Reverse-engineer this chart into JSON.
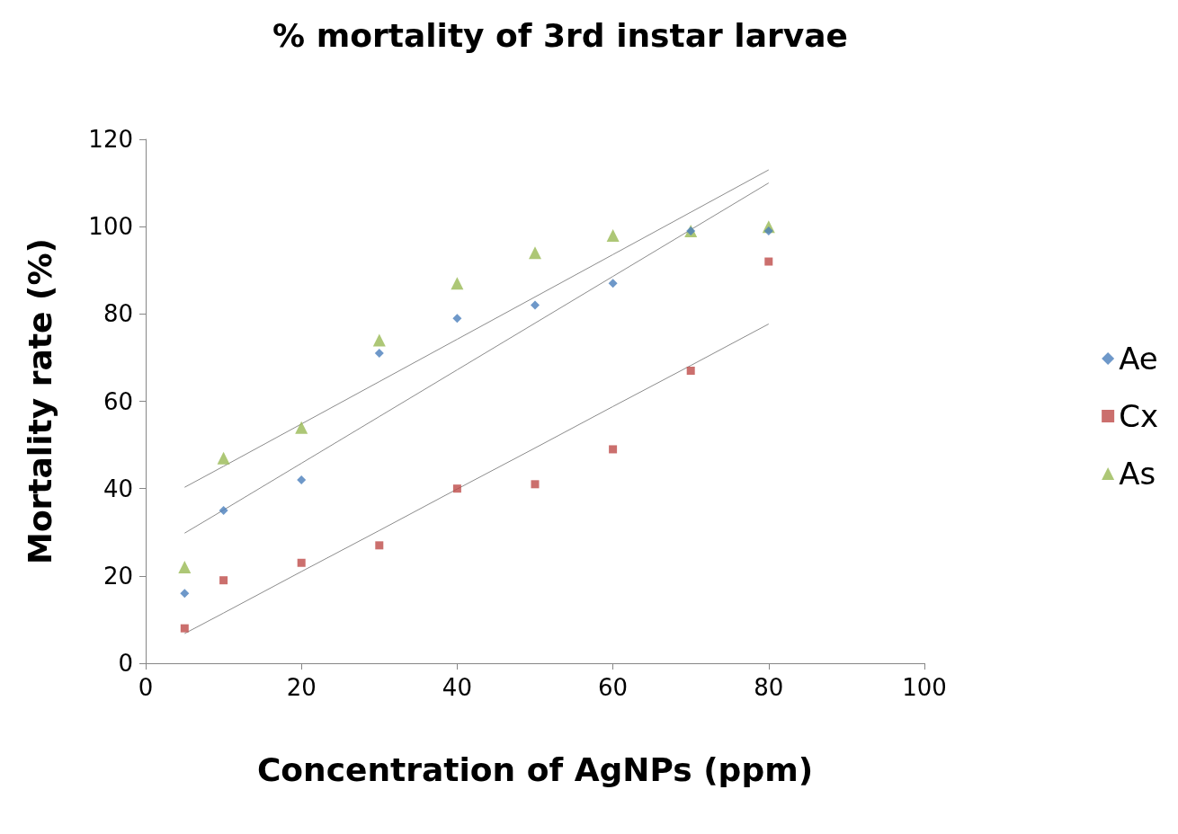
{
  "chart_data": {
    "type": "scatter",
    "title": "% mortality of 3rd instar larvae",
    "xlabel": "Concentration of AgNPs (ppm)",
    "ylabel": "Mortality rate (%)",
    "x": [
      5,
      10,
      20,
      30,
      40,
      50,
      60,
      70,
      80
    ],
    "series": [
      {
        "name": "Ae",
        "color": "#4a7ebb",
        "marker": "diamond",
        "values": [
          16,
          35,
          42,
          71,
          79,
          82,
          87,
          99,
          99
        ]
      },
      {
        "name": "Cx",
        "color": "#be4b48",
        "marker": "square",
        "values": [
          8,
          19,
          23,
          27,
          40,
          41,
          49,
          67,
          92
        ]
      },
      {
        "name": "As",
        "color": "#98b954",
        "marker": "triangle",
        "values": [
          22,
          47,
          54,
          74,
          87,
          94,
          98,
          99,
          100
        ]
      },
      {
        "type": "line",
        "color": "#8c8c8c",
        "marker": "none",
        "values": [
          40.3,
          45.1,
          54.8,
          64.5,
          74.2,
          83.9,
          93.6,
          103.3,
          113
        ]
      },
      {
        "type": "line",
        "color": "#8c8c8c",
        "marker": "none",
        "values": [
          29.8,
          35.1,
          45.8,
          56.5,
          67.2,
          77.9,
          88.6,
          99.3,
          110
        ]
      },
      {
        "type": "line",
        "color": "#8c8c8c",
        "marker": "none",
        "values": [
          6.8,
          11.5,
          21.0,
          30.4,
          39.9,
          49.3,
          58.8,
          68.2,
          77.7
        ]
      }
    ],
    "xlim": [
      0,
      100
    ],
    "xticks": [
      0,
      20,
      40,
      60,
      80,
      100
    ],
    "ylim": [
      0,
      120
    ],
    "yticks": [
      0,
      20,
      40,
      60,
      80,
      100,
      120
    ],
    "grid": false,
    "legend": "right"
  }
}
